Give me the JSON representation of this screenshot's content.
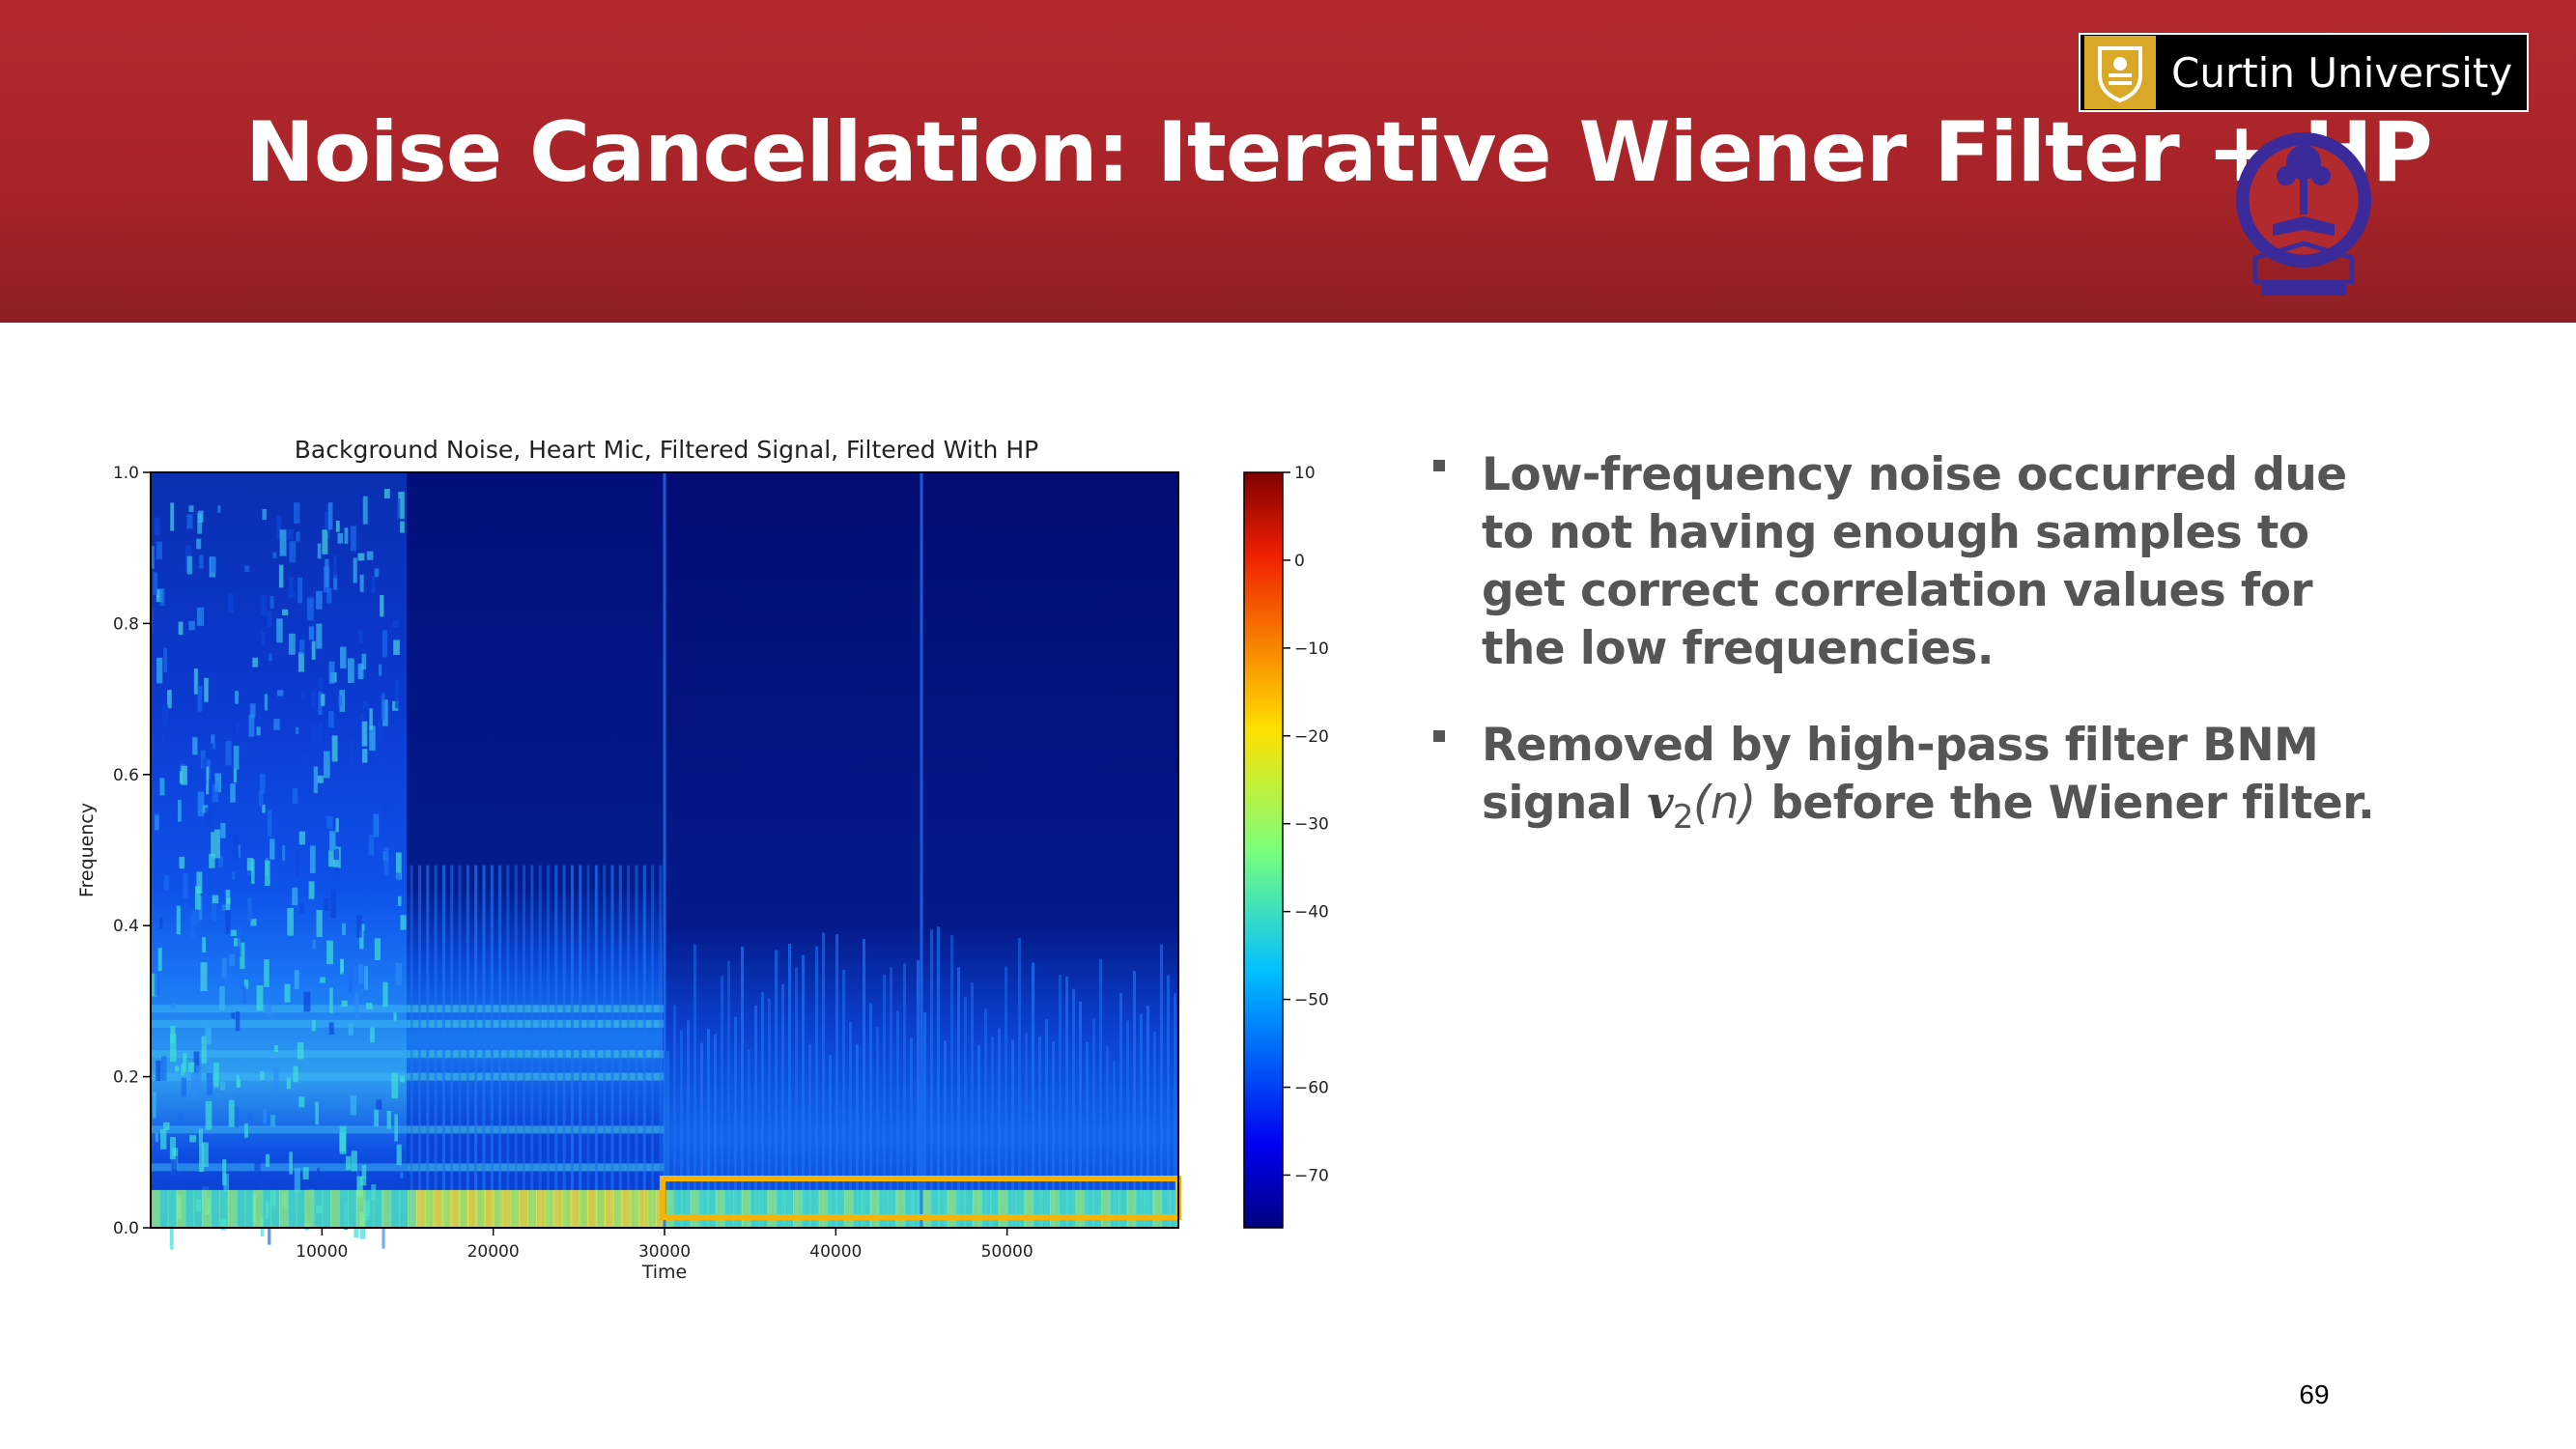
{
  "header": {
    "title": "Noise Cancellation: Iterative Wiener Filter + HP",
    "logo_text": "Curtin University",
    "background_color": "#ad2529"
  },
  "chart_data": {
    "type": "heatmap",
    "title": "Background Noise, Heart Mic, Filtered Signal, Filtered With HP",
    "xlabel": "Time",
    "ylabel": "Frequency",
    "x_ticks": [
      "10000",
      "20000",
      "30000",
      "40000",
      "50000"
    ],
    "y_ticks": [
      "0.0",
      "0.2",
      "0.4",
      "0.6",
      "0.8",
      "1.0"
    ],
    "xlim": [
      0,
      60000
    ],
    "ylim": [
      0,
      1.0
    ],
    "colorbar": {
      "ticks": [
        "10",
        "0",
        "−10",
        "−20",
        "−30",
        "−40",
        "−50",
        "−60",
        "−70"
      ],
      "range": [
        -76,
        10
      ],
      "colormap": "jet"
    },
    "segments": [
      {
        "label": "Background Noise",
        "x_start": 0,
        "x_end": 15000
      },
      {
        "label": "Heart Mic",
        "x_start": 15000,
        "x_end": 30000
      },
      {
        "label": "Filtered Signal",
        "x_start": 30000,
        "x_end": 45000
      },
      {
        "label": "Filtered With HP",
        "x_start": 45000,
        "x_end": 60000
      }
    ],
    "highlight": {
      "x_start": 30000,
      "x_end": 60000,
      "y_start": 0.0,
      "y_end": 0.06,
      "color": "#f5b400"
    }
  },
  "bullets": [
    {
      "text": "Low-frequency noise occurred due to not having enough samples to get correct correlation values for the low frequencies."
    },
    {
      "text_before": "Removed by high-pass filter BNM signal ",
      "math_main": "v",
      "math_sub": "2",
      "math_paren": "(n)",
      "text_after": " before the Wiener filter."
    }
  ],
  "page_number": "69"
}
